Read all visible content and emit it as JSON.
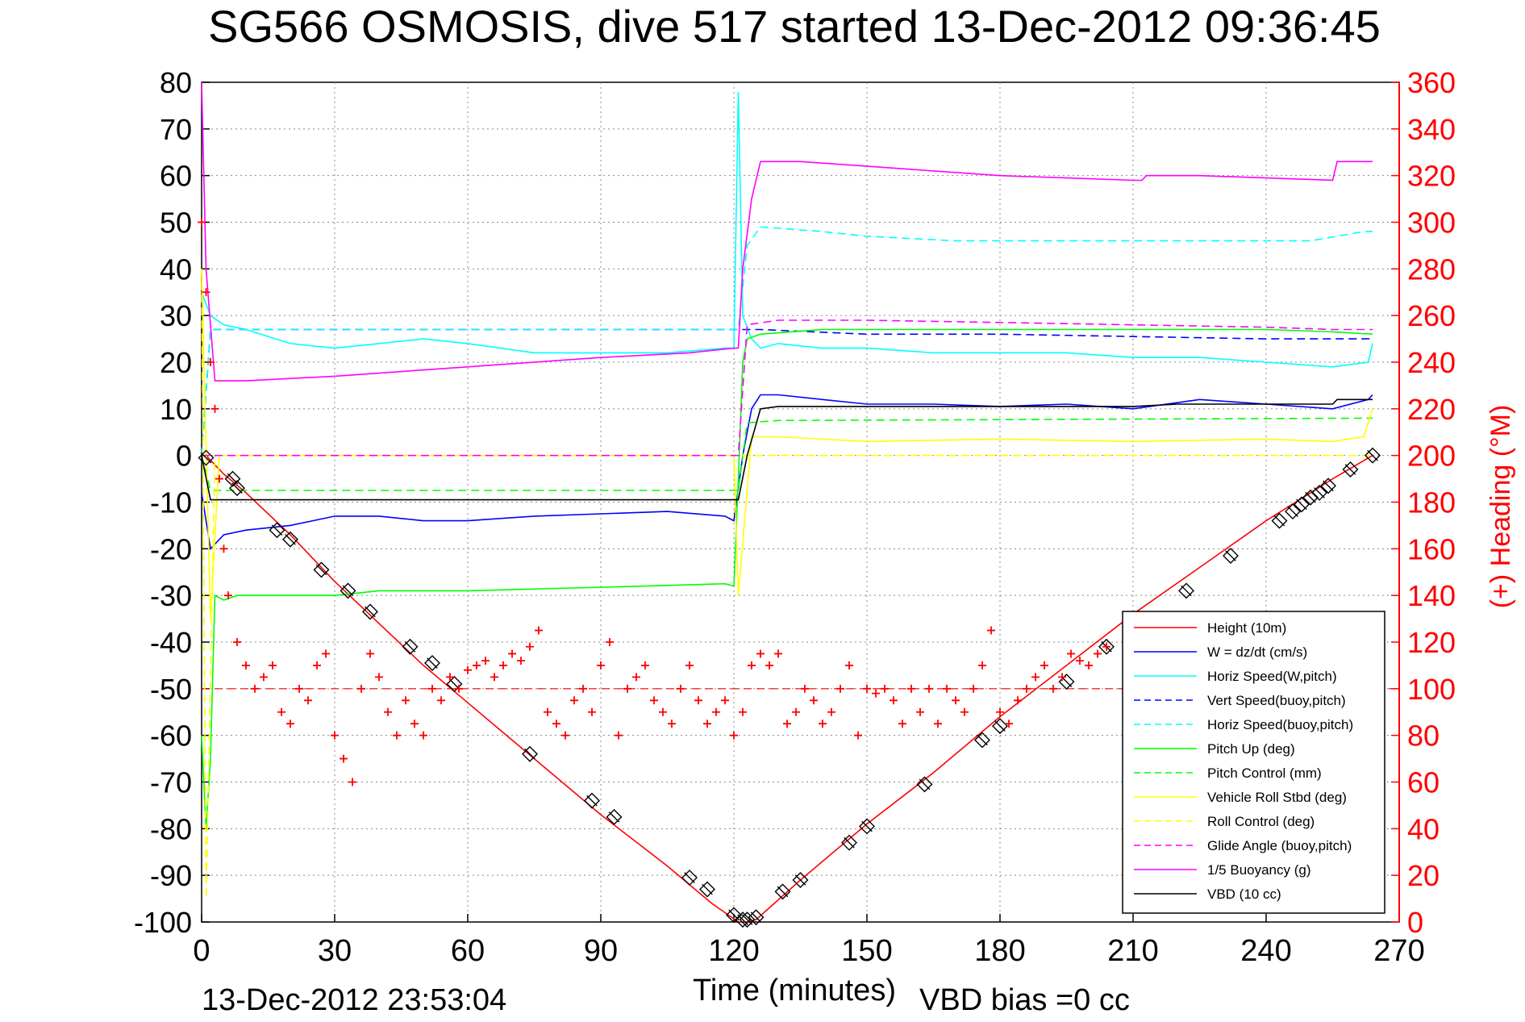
{
  "chart_data": {
    "type": "line",
    "title": "SG566 OSMOSIS, dive 517 started 13-Dec-2012 09:36:45",
    "xlabel": "Time (minutes)",
    "ylabel": "",
    "y2label": "(+) Heading (°M)",
    "footer_timestamp": "13-Dec-2012 23:53:04",
    "footer_bias": "VBD bias =0 cc",
    "xlim": [
      0,
      270
    ],
    "ylim": [
      -100,
      80
    ],
    "y2lim": [
      0,
      360
    ],
    "xticks": [
      0,
      30,
      60,
      90,
      120,
      150,
      180,
      210,
      240,
      270
    ],
    "yticks": [
      80,
      70,
      60,
      50,
      40,
      30,
      20,
      10,
      0,
      -10,
      -20,
      -30,
      -40,
      -50,
      -60,
      -70,
      -80,
      -90,
      -100
    ],
    "y2ticks": [
      360,
      340,
      320,
      300,
      280,
      260,
      240,
      220,
      200,
      180,
      160,
      140,
      120,
      100,
      80,
      60,
      40,
      20,
      0
    ],
    "grid": true,
    "legend_position": "lower-right",
    "colors": {
      "red": "#ff0000",
      "blue": "#0000ff",
      "cyan": "#00ffff",
      "green": "#00ff00",
      "yellow": "#ffff00",
      "magenta": "#ff00ff",
      "black": "#000000"
    },
    "legend": [
      {
        "label": "Height (10m)",
        "color": "#ff0000",
        "dash": false
      },
      {
        "label": "W = dz/dt (cm/s)",
        "color": "#0000ff",
        "dash": false
      },
      {
        "label": "Horiz Speed(W,pitch)",
        "color": "#00ffff",
        "dash": false
      },
      {
        "label": "Vert Speed(buoy,pitch)",
        "color": "#0000ff",
        "dash": true
      },
      {
        "label": "Horiz Speed(buoy,pitch)",
        "color": "#00ffff",
        "dash": true
      },
      {
        "label": "Pitch Up (deg)",
        "color": "#00ff00",
        "dash": false
      },
      {
        "label": "Pitch Control (mm)",
        "color": "#00ff00",
        "dash": true
      },
      {
        "label": "Vehicle Roll Stbd (deg)",
        "color": "#ffff00",
        "dash": false
      },
      {
        "label": "Roll Control (deg)",
        "color": "#ffff00",
        "dash": true
      },
      {
        "label": "Glide Angle (buoy,pitch)",
        "color": "#ff00ff",
        "dash": true
      },
      {
        "label": "1/5 Buoyancy (g)",
        "color": "#ff00ff",
        "dash": false
      },
      {
        "label": "VBD (10 cc)",
        "color": "#000000",
        "dash": false
      }
    ],
    "series": [
      {
        "name": "Height (10m)",
        "color": "#ff0000",
        "dash": false,
        "x": [
          0,
          1,
          5,
          10,
          20,
          30,
          40,
          50,
          60,
          75,
          90,
          105,
          115,
          121,
          123,
          125,
          135,
          150,
          165,
          180,
          195,
          210,
          225,
          240,
          255,
          264
        ],
        "y": [
          0,
          0,
          -4,
          -8,
          -17,
          -27,
          -36,
          -45,
          -53,
          -65,
          -77,
          -88,
          -96,
          -100,
          -100,
          -99.5,
          -91,
          -79,
          -68,
          -56,
          -45,
          -34,
          -24,
          -14,
          -5,
          0
        ]
      },
      {
        "name": "W = dz/dt (cm/s)",
        "color": "#0000ff",
        "dash": false,
        "x": [
          0,
          2,
          5,
          10,
          20,
          30,
          40,
          50,
          60,
          75,
          90,
          105,
          118,
          120,
          122,
          124,
          126,
          130,
          140,
          150,
          165,
          180,
          195,
          210,
          225,
          240,
          255,
          263,
          264
        ],
        "y": [
          -8,
          -20,
          -17,
          -16,
          -15,
          -13,
          -13,
          -14,
          -14,
          -13,
          -12.5,
          -12,
          -13,
          -14,
          0,
          10,
          13,
          13,
          12,
          11,
          11,
          10.5,
          11,
          10,
          12,
          11,
          10,
          12,
          13
        ]
      },
      {
        "name": "Horiz Speed(W,pitch)",
        "color": "#00ffff",
        "dash": false,
        "x": [
          0,
          2,
          5,
          10,
          20,
          30,
          40,
          50,
          60,
          75,
          90,
          105,
          118,
          120,
          121,
          122,
          124,
          126,
          130,
          140,
          150,
          165,
          180,
          195,
          210,
          225,
          240,
          255,
          263,
          264
        ],
        "y": [
          35,
          30,
          28,
          27,
          24,
          23,
          24,
          25,
          24,
          22,
          22,
          22,
          23,
          23,
          78,
          30,
          25,
          23,
          24,
          23,
          23,
          22,
          22,
          22,
          21,
          21,
          20,
          19,
          20,
          24
        ]
      },
      {
        "name": "Vert Speed(buoy,pitch)",
        "color": "#0000ff",
        "dash": true,
        "x": [
          0,
          2,
          5,
          120,
          121,
          123,
          126,
          150,
          180,
          210,
          240,
          264
        ],
        "y": [
          0,
          27,
          27,
          27,
          27,
          27,
          27,
          26,
          26,
          25.5,
          25,
          25
        ]
      },
      {
        "name": "Horiz Speed(buoy,pitch)",
        "color": "#00ffff",
        "dash": true,
        "x": [
          0,
          2,
          5,
          120,
          121,
          123,
          126,
          140,
          150,
          170,
          190,
          210,
          230,
          250,
          262,
          264
        ],
        "y": [
          0,
          27,
          27,
          27,
          27,
          45,
          49,
          48,
          47,
          46,
          46,
          46,
          46,
          46,
          48,
          48
        ]
      },
      {
        "name": "Pitch Up (deg)",
        "color": "#00ff00",
        "dash": false,
        "x": [
          0,
          1,
          2,
          3,
          5,
          8,
          20,
          30,
          40,
          60,
          80,
          100,
          118,
          120,
          121,
          122,
          123,
          126,
          140,
          160,
          180,
          200,
          220,
          240,
          255,
          264
        ],
        "y": [
          -60,
          -80,
          -65,
          -30,
          -31,
          -30,
          -30,
          -30,
          -29,
          -29,
          -28.5,
          -28,
          -27.5,
          -28,
          -5,
          20,
          25,
          26,
          27,
          27,
          27,
          27,
          27,
          27,
          26.5,
          26
        ]
      },
      {
        "name": "Pitch Control (mm)",
        "color": "#00ff00",
        "dash": true,
        "x": [
          0,
          2,
          5,
          120,
          121,
          123,
          130,
          264
        ],
        "y": [
          0,
          -7.5,
          -7.5,
          -7.5,
          -7.5,
          7,
          7.5,
          8
        ]
      },
      {
        "name": "Vehicle Roll Stbd (deg)",
        "color": "#ffff00",
        "dash": false,
        "x": [
          0,
          2,
          4,
          20,
          40,
          60,
          80,
          100,
          120,
          121,
          124,
          130,
          150,
          180,
          210,
          240,
          255,
          262,
          264
        ],
        "y": [
          40,
          -35,
          0,
          0,
          0,
          0,
          0,
          0,
          0,
          -30,
          4,
          4,
          3,
          3.5,
          3,
          3.5,
          3,
          4,
          10
        ]
      },
      {
        "name": "Roll Control (deg)",
        "color": "#ffff00",
        "dash": true,
        "x": [
          0,
          1,
          3,
          5,
          120,
          121,
          123,
          126,
          264
        ],
        "y": [
          40,
          -95,
          0,
          0,
          0,
          0,
          0,
          0,
          0
        ]
      },
      {
        "name": "Glide Angle (buoy,pitch)",
        "color": "#ff00ff",
        "dash": true,
        "x": [
          0,
          2,
          5,
          120,
          121,
          123,
          130,
          150,
          180,
          210,
          240,
          255,
          264
        ],
        "y": [
          0,
          0,
          0,
          0,
          0,
          28,
          29,
          29,
          28.5,
          28,
          27.5,
          27,
          27
        ]
      },
      {
        "name": "1/5 Buoyancy (g)",
        "color": "#ff00ff",
        "dash": false,
        "x": [
          0,
          1,
          3,
          10,
          30,
          60,
          90,
          110,
          120,
          121,
          122,
          124,
          126,
          135,
          150,
          165,
          180,
          195,
          210,
          212,
          213,
          225,
          240,
          255,
          256,
          264
        ],
        "y": [
          80,
          40,
          16,
          16,
          17,
          19,
          21,
          22,
          23,
          23,
          40,
          55,
          63,
          63,
          62,
          61,
          60,
          59.5,
          59,
          59,
          60,
          60,
          59.5,
          59,
          63,
          63
        ]
      },
      {
        "name": "VBD (10 cc)",
        "color": "#000000",
        "dash": false,
        "x": [
          0,
          2,
          120,
          121,
          123,
          126,
          130,
          150,
          200,
          210,
          220,
          255,
          256,
          264
        ],
        "y": [
          0,
          -9.5,
          -9.5,
          -9.5,
          0,
          10,
          10.5,
          10.5,
          10.5,
          10.5,
          11,
          11,
          12,
          12
        ]
      }
    ],
    "heading": {
      "name": "(+) Heading (°M)",
      "color": "#ff0000",
      "axis": "right",
      "mean": 100,
      "x": [
        0,
        1,
        2,
        3,
        4,
        5,
        6,
        8,
        10,
        12,
        14,
        16,
        18,
        20,
        22,
        24,
        26,
        28,
        30,
        32,
        34,
        36,
        38,
        40,
        42,
        44,
        46,
        48,
        50,
        52,
        54,
        56,
        58,
        60,
        62,
        64,
        66,
        68,
        70,
        72,
        74,
        76,
        78,
        80,
        82,
        84,
        86,
        88,
        90,
        92,
        94,
        96,
        98,
        100,
        102,
        104,
        106,
        108,
        110,
        112,
        114,
        116,
        118,
        120,
        122,
        124,
        126,
        128,
        130,
        132,
        134,
        136,
        138,
        140,
        142,
        144,
        146,
        148,
        150,
        152,
        154,
        156,
        158,
        160,
        162,
        164,
        166,
        168,
        170,
        172,
        174,
        176,
        178,
        180,
        182,
        184,
        186,
        188,
        190,
        192,
        194,
        196,
        198,
        200,
        202,
        204
      ],
      "y": [
        300,
        270,
        240,
        220,
        190,
        160,
        140,
        120,
        110,
        100,
        105,
        110,
        90,
        85,
        100,
        95,
        110,
        115,
        80,
        70,
        60,
        100,
        115,
        105,
        90,
        80,
        95,
        85,
        80,
        100,
        95,
        105,
        100,
        108,
        110,
        112,
        105,
        110,
        115,
        112,
        118,
        125,
        90,
        85,
        80,
        95,
        100,
        90,
        110,
        120,
        80,
        100,
        105,
        110,
        95,
        90,
        85,
        100,
        110,
        95,
        85,
        90,
        95,
        80,
        90,
        110,
        115,
        110,
        115,
        85,
        90,
        100,
        95,
        85,
        90,
        100,
        110,
        80,
        100,
        98,
        100,
        95,
        85,
        100,
        90,
        100,
        85,
        100,
        95,
        90,
        100,
        110,
        125,
        90,
        85,
        95,
        100,
        105,
        110,
        100,
        105,
        115,
        112,
        110,
        115,
        118
      ]
    },
    "diamond_markers": {
      "x": [
        1,
        7,
        8,
        17,
        20,
        27,
        33,
        38,
        47,
        52,
        57,
        74,
        88,
        93,
        110,
        114,
        120,
        122,
        123,
        125,
        131,
        135,
        146,
        150,
        163,
        176,
        180,
        195,
        204,
        222,
        232,
        243,
        246,
        248,
        250,
        252,
        254,
        259,
        264
      ],
      "y": [
        -0.5,
        -5,
        -7,
        -16,
        -18,
        -24.5,
        -29,
        -33.5,
        -41,
        -44.5,
        -49,
        -64,
        -74,
        -77.5,
        -90.5,
        -93,
        -98.5,
        -99.5,
        -99.5,
        -99,
        -93.5,
        -91,
        -83,
        -79.5,
        -70.5,
        -61,
        -58,
        -48.5,
        -41,
        -29,
        -21.5,
        -14,
        -12,
        -10.5,
        -9,
        -8,
        -6.5,
        -3,
        0
      ]
    }
  }
}
